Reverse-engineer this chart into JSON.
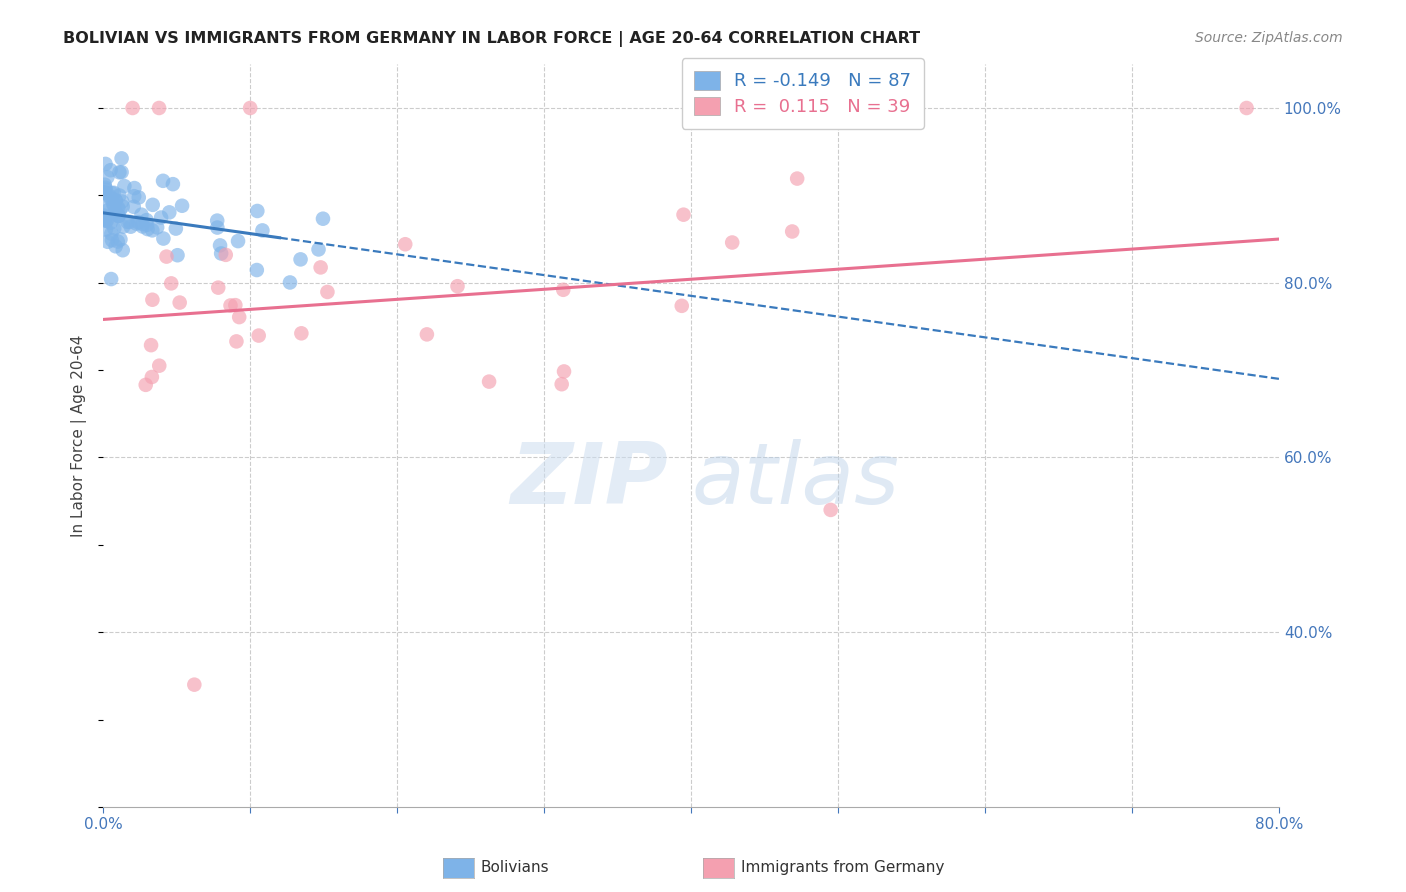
{
  "title": "BOLIVIAN VS IMMIGRANTS FROM GERMANY IN LABOR FORCE | AGE 20-64 CORRELATION CHART",
  "source": "Source: ZipAtlas.com",
  "ylabel": "In Labor Force | Age 20-64",
  "xlim": [
    0.0,
    0.8
  ],
  "ylim": [
    0.2,
    1.05
  ],
  "blue_color": "#7eb3e8",
  "pink_color": "#f4a0b0",
  "blue_line_color": "#3a7abd",
  "pink_line_color": "#e87090",
  "legend_blue_R": "-0.149",
  "legend_blue_N": "87",
  "legend_pink_R": " 0.115",
  "legend_pink_N": "39",
  "watermark_zip": "ZIP",
  "watermark_atlas": "atlas",
  "blue_trendline_x": [
    0.0,
    0.8
  ],
  "blue_trendline_y": [
    0.88,
    0.69
  ],
  "blue_trendline_solid_end": 0.12,
  "pink_trendline_x": [
    0.0,
    0.8
  ],
  "pink_trendline_y": [
    0.758,
    0.85
  ],
  "grid_color": "#cccccc",
  "background_color": "#ffffff",
  "title_color": "#222222",
  "tick_color": "#4477bb"
}
